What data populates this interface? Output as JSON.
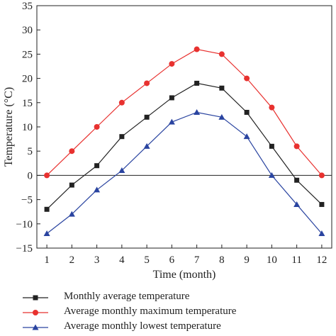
{
  "chart_data": {
    "type": "line",
    "xlabel": "Time (month)",
    "ylabel": "Temperature (°C)",
    "x": [
      1,
      2,
      3,
      4,
      5,
      6,
      7,
      8,
      9,
      10,
      11,
      12
    ],
    "xticks": [
      "1",
      "2",
      "3",
      "4",
      "5",
      "6",
      "7",
      "8",
      "9",
      "10",
      "11",
      "12"
    ],
    "xlim": [
      0.6,
      12.4
    ],
    "ylim": [
      -15,
      35
    ],
    "yticks": [
      -15,
      -10,
      -5,
      0,
      5,
      10,
      15,
      20,
      25,
      30,
      35
    ],
    "zero_line": true,
    "grid": false,
    "legend_position": "bottom",
    "series": [
      {
        "name": "Monthly average temperature",
        "color": "#222222",
        "marker": "square",
        "values": [
          -7,
          -2,
          2,
          8,
          12,
          16,
          19,
          18,
          13,
          6,
          -1,
          -6
        ]
      },
      {
        "name": "Average monthly maximum temperature",
        "color": "#e8312f",
        "marker": "circle",
        "values": [
          0,
          5,
          10,
          15,
          19,
          23,
          26,
          25,
          20,
          14,
          6,
          0
        ]
      },
      {
        "name": "Average monthly lowest temperature",
        "color": "#2a44a0",
        "marker": "triangle",
        "values": [
          -12,
          -8,
          -3,
          1,
          6,
          11,
          13,
          12,
          8,
          0,
          -6,
          -12
        ]
      }
    ]
  }
}
